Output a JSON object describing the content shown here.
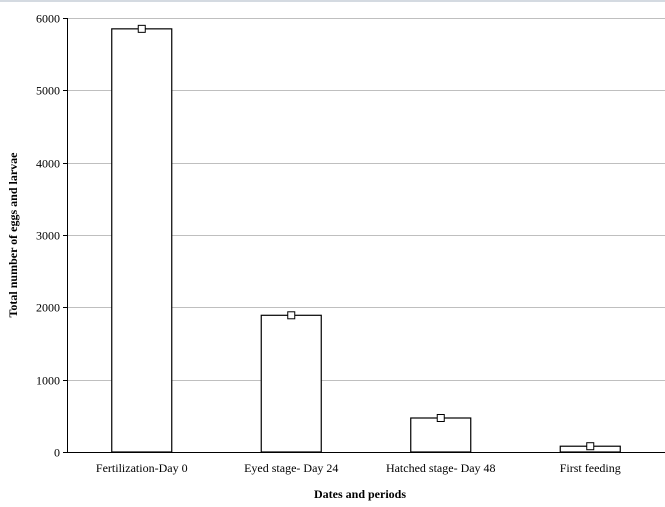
{
  "chart_data": {
    "type": "bar",
    "title": "",
    "xlabel": "Dates and periods",
    "ylabel": "Total number of eggs and larvae",
    "categories": [
      "Fertilization-Day 0",
      "Eyed stage- Day 24",
      "Hatched stage- Day 48",
      "First feeding"
    ],
    "values": [
      5850,
      1890,
      470,
      80
    ],
    "ylim": [
      0,
      6000
    ],
    "yticks": [
      0,
      1000,
      2000,
      3000,
      4000,
      5000,
      6000
    ],
    "grid": true,
    "legend": "none",
    "colors": {
      "bar_fill": "#ffffff",
      "bar_stroke": "#000000",
      "grid": "#bfbfbf",
      "marker": "#000000"
    }
  }
}
